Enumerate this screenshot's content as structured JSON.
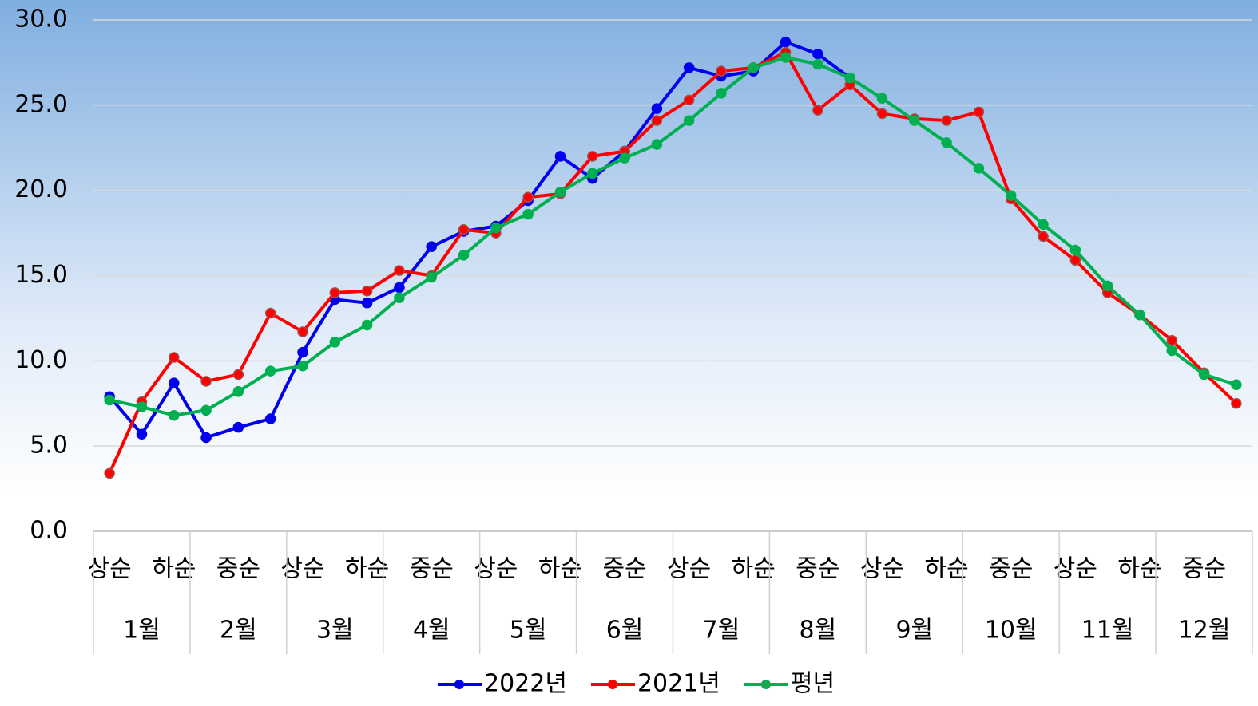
{
  "chart_data": {
    "type": "line",
    "categories": [
      "상순",
      null,
      "하순",
      null,
      "중순",
      null,
      "상순",
      null,
      "하순",
      null,
      "중순",
      null,
      "상순",
      null,
      "하순",
      null,
      "중순",
      null,
      "상순",
      null,
      "하순",
      null,
      "중순",
      null,
      "상순",
      null,
      "하순",
      null,
      "중순",
      null,
      "상순",
      null,
      "하순",
      null,
      "중순",
      null
    ],
    "month_groups": [
      "1월",
      "2월",
      "3월",
      "4월",
      "5월",
      "6월",
      "7월",
      "8월",
      "9월",
      "10월",
      "11월",
      "12월"
    ],
    "series": [
      {
        "name": "2022년",
        "color": "#0000ee",
        "values": [
          7.9,
          5.7,
          8.7,
          5.5,
          6.1,
          6.6,
          10.5,
          13.6,
          13.4,
          14.3,
          16.7,
          17.6,
          17.9,
          19.4,
          22.0,
          20.7,
          22.3,
          24.8,
          27.2,
          26.7,
          27.0,
          28.7,
          28.0,
          26.6,
          null,
          null,
          null,
          null,
          null,
          null,
          null,
          null,
          null,
          null,
          null,
          null
        ]
      },
      {
        "name": "2021년",
        "color": "#ff0000",
        "values": [
          3.4,
          7.6,
          10.2,
          8.8,
          9.2,
          12.8,
          11.7,
          14.0,
          14.1,
          15.3,
          15.0,
          17.7,
          17.5,
          19.6,
          19.8,
          22.0,
          22.3,
          24.1,
          25.3,
          27.0,
          27.2,
          28.1,
          24.7,
          26.2,
          24.5,
          24.2,
          24.1,
          24.6,
          19.5,
          17.3,
          15.9,
          14.0,
          12.7,
          11.2,
          9.3,
          7.5
        ]
      },
      {
        "name": "평년",
        "color": "#00b050",
        "values": [
          7.7,
          7.3,
          6.8,
          7.1,
          8.2,
          9.4,
          9.7,
          11.1,
          12.1,
          13.7,
          14.9,
          16.2,
          17.8,
          18.6,
          19.9,
          21.0,
          21.9,
          22.7,
          24.1,
          25.7,
          27.2,
          27.8,
          27.4,
          26.6,
          25.4,
          24.1,
          22.8,
          21.3,
          19.7,
          18.0,
          16.5,
          14.4,
          12.7,
          10.6,
          9.2,
          8.6
        ]
      }
    ],
    "ylim": [
      0,
      30
    ],
    "yticks": [
      {
        "value": 0,
        "label": "0.0"
      },
      {
        "value": 5,
        "label": "5.0"
      },
      {
        "value": 10,
        "label": "10.0"
      },
      {
        "value": 15,
        "label": "15.0"
      },
      {
        "value": 20,
        "label": "20.0"
      },
      {
        "value": 25,
        "label": "25.0"
      },
      {
        "value": 30,
        "label": "30.0"
      }
    ],
    "grid": true,
    "legend": "bottom"
  }
}
